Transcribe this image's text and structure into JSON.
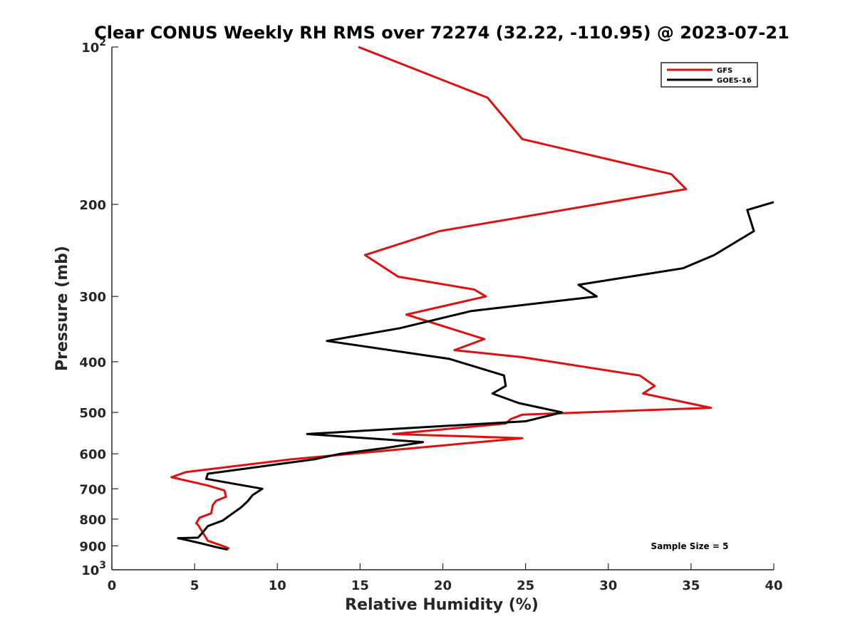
{
  "chart_data": {
    "type": "line",
    "title": "Clear CONUS Weekly RH RMS over 72274 (32.22, -110.95) @ 2023-07-21",
    "xlabel": "Relative Humidity (%)",
    "ylabel": "Pressure (mb)",
    "xlim": [
      0,
      40
    ],
    "ylim": [
      100,
      1000
    ],
    "yscale": "log",
    "yreversed": true,
    "grid": false,
    "legend_position": "top-right",
    "x_ticks": [
      0,
      5,
      10,
      15,
      20,
      25,
      30,
      35,
      40
    ],
    "x_tick_labels": [
      "0",
      "5",
      "10",
      "15",
      "20",
      "25",
      "30",
      "35",
      "40"
    ],
    "y_ticks": [
      100,
      200,
      300,
      400,
      500,
      600,
      700,
      800,
      900,
      1000
    ],
    "y_tick_labels": [
      {
        "base": "10",
        "exp": "2"
      },
      {
        "base": "200",
        "exp": ""
      },
      {
        "base": "300",
        "exp": ""
      },
      {
        "base": "400",
        "exp": ""
      },
      {
        "base": "500",
        "exp": ""
      },
      {
        "base": "600",
        "exp": ""
      },
      {
        "base": "700",
        "exp": ""
      },
      {
        "base": "800",
        "exp": ""
      },
      {
        "base": "900",
        "exp": ""
      },
      {
        "base": "10",
        "exp": "3"
      }
    ],
    "annotation": "Sample Size = 5",
    "series": [
      {
        "name": "GFS",
        "color": "#e01010",
        "points": [
          [
            14.9,
            100
          ],
          [
            22.7,
            125
          ],
          [
            24.8,
            150
          ],
          [
            33.8,
            175
          ],
          [
            34.7,
            187
          ],
          [
            19.8,
            225
          ],
          [
            15.3,
            250
          ],
          [
            17.3,
            275
          ],
          [
            21.9,
            291
          ],
          [
            22.6,
            300
          ],
          [
            17.8,
            325
          ],
          [
            22.5,
            362
          ],
          [
            20.7,
            380
          ],
          [
            24.8,
            392
          ],
          [
            31.9,
            425
          ],
          [
            32.8,
            445
          ],
          [
            32.1,
            460
          ],
          [
            36.2,
            490
          ],
          [
            24.8,
            505
          ],
          [
            24.1,
            515
          ],
          [
            23.8,
            525
          ],
          [
            17.0,
            550
          ],
          [
            24.8,
            560
          ],
          [
            10.8,
            615
          ],
          [
            4.5,
            650
          ],
          [
            3.6,
            665
          ],
          [
            5.8,
            690
          ],
          [
            6.8,
            705
          ],
          [
            6.9,
            725
          ],
          [
            6.3,
            738
          ],
          [
            6.1,
            752
          ],
          [
            6.0,
            780
          ],
          [
            5.3,
            795
          ],
          [
            5.1,
            815
          ],
          [
            5.2,
            820
          ],
          [
            5.6,
            860
          ],
          [
            5.8,
            880
          ],
          [
            6.9,
            905
          ],
          [
            7.1,
            912
          ]
        ]
      },
      {
        "name": "GOES-16",
        "color": "#000000",
        "points": [
          [
            40.0,
            198
          ],
          [
            38.4,
            205
          ],
          [
            38.8,
            225
          ],
          [
            36.4,
            250
          ],
          [
            34.5,
            265
          ],
          [
            28.2,
            285
          ],
          [
            29.3,
            300
          ],
          [
            21.7,
            320
          ],
          [
            17.4,
            345
          ],
          [
            13.0,
            365
          ],
          [
            20.4,
            395
          ],
          [
            23.7,
            425
          ],
          [
            23.8,
            445
          ],
          [
            23.0,
            460
          ],
          [
            24.6,
            480
          ],
          [
            27.2,
            500
          ],
          [
            25.0,
            520
          ],
          [
            11.8,
            550
          ],
          [
            18.8,
            570
          ],
          [
            16.5,
            585
          ],
          [
            13.8,
            600
          ],
          [
            12.2,
            615
          ],
          [
            5.8,
            655
          ],
          [
            5.7,
            670
          ],
          [
            9.1,
            700
          ],
          [
            8.5,
            720
          ],
          [
            8.2,
            740
          ],
          [
            7.8,
            760
          ],
          [
            7.3,
            780
          ],
          [
            6.7,
            805
          ],
          [
            5.8,
            825
          ],
          [
            5.4,
            855
          ],
          [
            5.2,
            868
          ],
          [
            4.0,
            870
          ],
          [
            5.4,
            890
          ],
          [
            6.3,
            905
          ],
          [
            7.0,
            915
          ]
        ]
      }
    ]
  }
}
